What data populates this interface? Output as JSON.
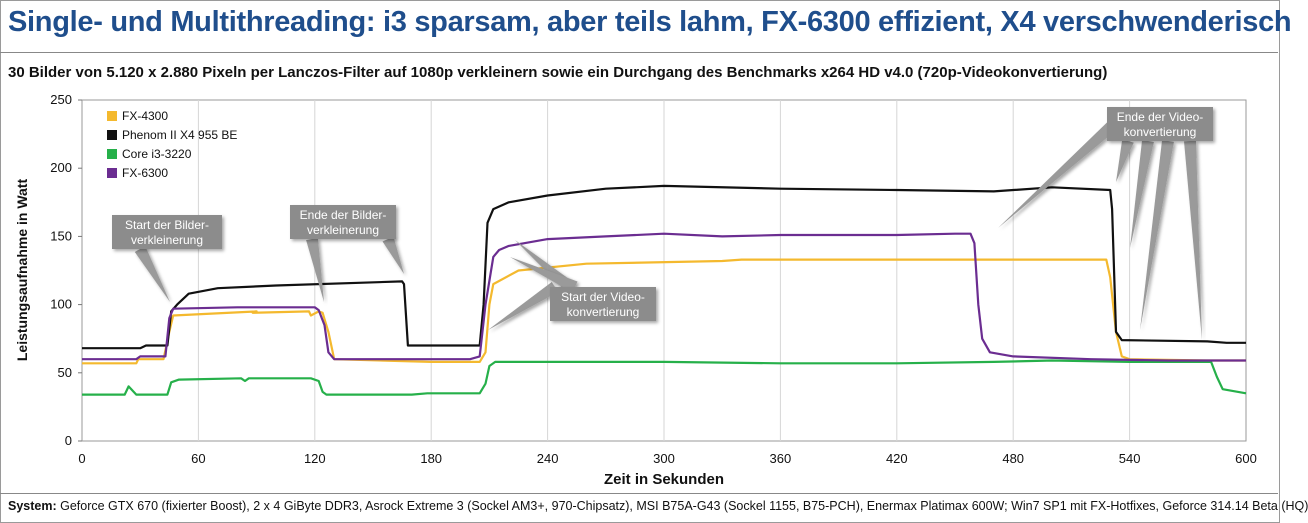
{
  "title": "Single- und Multithreading: i3 sparsam, aber teils lahm, FX-6300 effizient, X4 verschwenderisch",
  "subtitle": "30 Bilder von 5.120 x 2.880 Pixeln per Lanczos-Filter auf 1080p verkleinern sowie ein Durchgang des Benchmarks x264 HD v4.0 (720p-Videokonvertierung)",
  "footer": {
    "label": "System:",
    "text": "Geforce GTX 670 (fixierter Boost), 2 x 4 GiByte DDR3, Asrock Extreme 3 (Sockel AM3+, 970-Chipsatz), MSI B75A-G43 (Sockel 1155, B75-PCH), Enermax Platimax 600W; Win7 SP1 mit FX-Hotfixes, Geforce 314.14 Beta (HQ)"
  },
  "chart_data": {
    "type": "line",
    "xlabel": "Zeit in Sekunden",
    "ylabel": "Leistungsaufnahme in Watt",
    "xlim": [
      0,
      600
    ],
    "ylim": [
      0,
      250
    ],
    "xticks": [
      "0",
      "60",
      "120",
      "180",
      "240",
      "300",
      "360",
      "420",
      "480",
      "540",
      "600"
    ],
    "yticks": [
      "0",
      "50",
      "100",
      "150",
      "200",
      "250"
    ],
    "grid": "vertical",
    "legend": "top-left",
    "series": [
      {
        "name": "FX-4300",
        "color": "#f4b92e",
        "points": [
          [
            0,
            57
          ],
          [
            28,
            57
          ],
          [
            29,
            60
          ],
          [
            42,
            60
          ],
          [
            45,
            80
          ],
          [
            47,
            92
          ],
          [
            90,
            95
          ],
          [
            88,
            94
          ],
          [
            117,
            95
          ],
          [
            118,
            92
          ],
          [
            122,
            95
          ],
          [
            124,
            94
          ],
          [
            127,
            80
          ],
          [
            130,
            60
          ],
          [
            180,
            58
          ],
          [
            205,
            58
          ],
          [
            208,
            65
          ],
          [
            210,
            100
          ],
          [
            212,
            115
          ],
          [
            225,
            125
          ],
          [
            260,
            130
          ],
          [
            330,
            132
          ],
          [
            340,
            133
          ],
          [
            400,
            133
          ],
          [
            440,
            133
          ],
          [
            460,
            133
          ],
          [
            480,
            133
          ],
          [
            520,
            133
          ],
          [
            528,
            133
          ],
          [
            530,
            120
          ],
          [
            533,
            80
          ],
          [
            536,
            62
          ],
          [
            540,
            60
          ],
          [
            580,
            59
          ],
          [
            600,
            59
          ]
        ]
      },
      {
        "name": "Phenom II X4 955 BE",
        "color": "#111111",
        "points": [
          [
            0,
            68
          ],
          [
            30,
            68
          ],
          [
            33,
            70
          ],
          [
            44,
            70
          ],
          [
            46,
            95
          ],
          [
            49,
            100
          ],
          [
            55,
            108
          ],
          [
            70,
            112
          ],
          [
            100,
            114
          ],
          [
            165,
            117
          ],
          [
            166,
            115
          ],
          [
            168,
            70
          ],
          [
            200,
            70
          ],
          [
            205,
            70
          ],
          [
            207,
            100
          ],
          [
            209,
            160
          ],
          [
            212,
            170
          ],
          [
            220,
            175
          ],
          [
            240,
            180
          ],
          [
            270,
            185
          ],
          [
            300,
            187
          ],
          [
            360,
            185
          ],
          [
            420,
            184
          ],
          [
            470,
            183
          ],
          [
            500,
            186
          ],
          [
            530,
            184
          ],
          [
            531,
            170
          ],
          [
            533,
            80
          ],
          [
            536,
            74
          ],
          [
            580,
            73
          ],
          [
            590,
            72
          ],
          [
            600,
            72
          ]
        ]
      },
      {
        "name": "Core i3-3220",
        "color": "#26b04a",
        "points": [
          [
            0,
            34
          ],
          [
            22,
            34
          ],
          [
            24,
            40
          ],
          [
            28,
            34
          ],
          [
            44,
            34
          ],
          [
            46,
            43
          ],
          [
            50,
            45
          ],
          [
            82,
            46
          ],
          [
            84,
            44
          ],
          [
            86,
            46
          ],
          [
            118,
            46
          ],
          [
            122,
            44
          ],
          [
            124,
            36
          ],
          [
            126,
            34
          ],
          [
            170,
            34
          ],
          [
            178,
            35
          ],
          [
            205,
            35
          ],
          [
            208,
            42
          ],
          [
            210,
            55
          ],
          [
            213,
            58
          ],
          [
            240,
            58
          ],
          [
            300,
            58
          ],
          [
            360,
            57
          ],
          [
            420,
            57
          ],
          [
            470,
            58
          ],
          [
            500,
            59
          ],
          [
            540,
            58
          ],
          [
            560,
            58
          ],
          [
            582,
            58
          ],
          [
            585,
            47
          ],
          [
            588,
            38
          ],
          [
            600,
            35
          ]
        ]
      },
      {
        "name": "FX-6300",
        "color": "#6b2d91",
        "points": [
          [
            0,
            60
          ],
          [
            28,
            60
          ],
          [
            30,
            62
          ],
          [
            43,
            62
          ],
          [
            45,
            90
          ],
          [
            47,
            97
          ],
          [
            80,
            98
          ],
          [
            120,
            98
          ],
          [
            122,
            96
          ],
          [
            125,
            85
          ],
          [
            127,
            65
          ],
          [
            130,
            60
          ],
          [
            180,
            60
          ],
          [
            200,
            60
          ],
          [
            205,
            62
          ],
          [
            208,
            100
          ],
          [
            212,
            135
          ],
          [
            215,
            140
          ],
          [
            220,
            143
          ],
          [
            240,
            148
          ],
          [
            270,
            150
          ],
          [
            300,
            152
          ],
          [
            330,
            150
          ],
          [
            360,
            151
          ],
          [
            400,
            151
          ],
          [
            420,
            151
          ],
          [
            450,
            152
          ],
          [
            458,
            152
          ],
          [
            460,
            145
          ],
          [
            462,
            100
          ],
          [
            464,
            75
          ],
          [
            468,
            65
          ],
          [
            480,
            62
          ],
          [
            520,
            60
          ],
          [
            560,
            59
          ],
          [
            600,
            59
          ]
        ]
      }
    ],
    "annotations": [
      {
        "text": [
          "Start der Bilder-",
          "verkleinerung"
        ]
      },
      {
        "text": [
          "Ende der Bilder-",
          "verkleinerung"
        ]
      },
      {
        "text": [
          "Start der Video-",
          "konvertierung"
        ]
      },
      {
        "text": [
          "Ende der Video-",
          "konvertierung"
        ]
      }
    ]
  }
}
